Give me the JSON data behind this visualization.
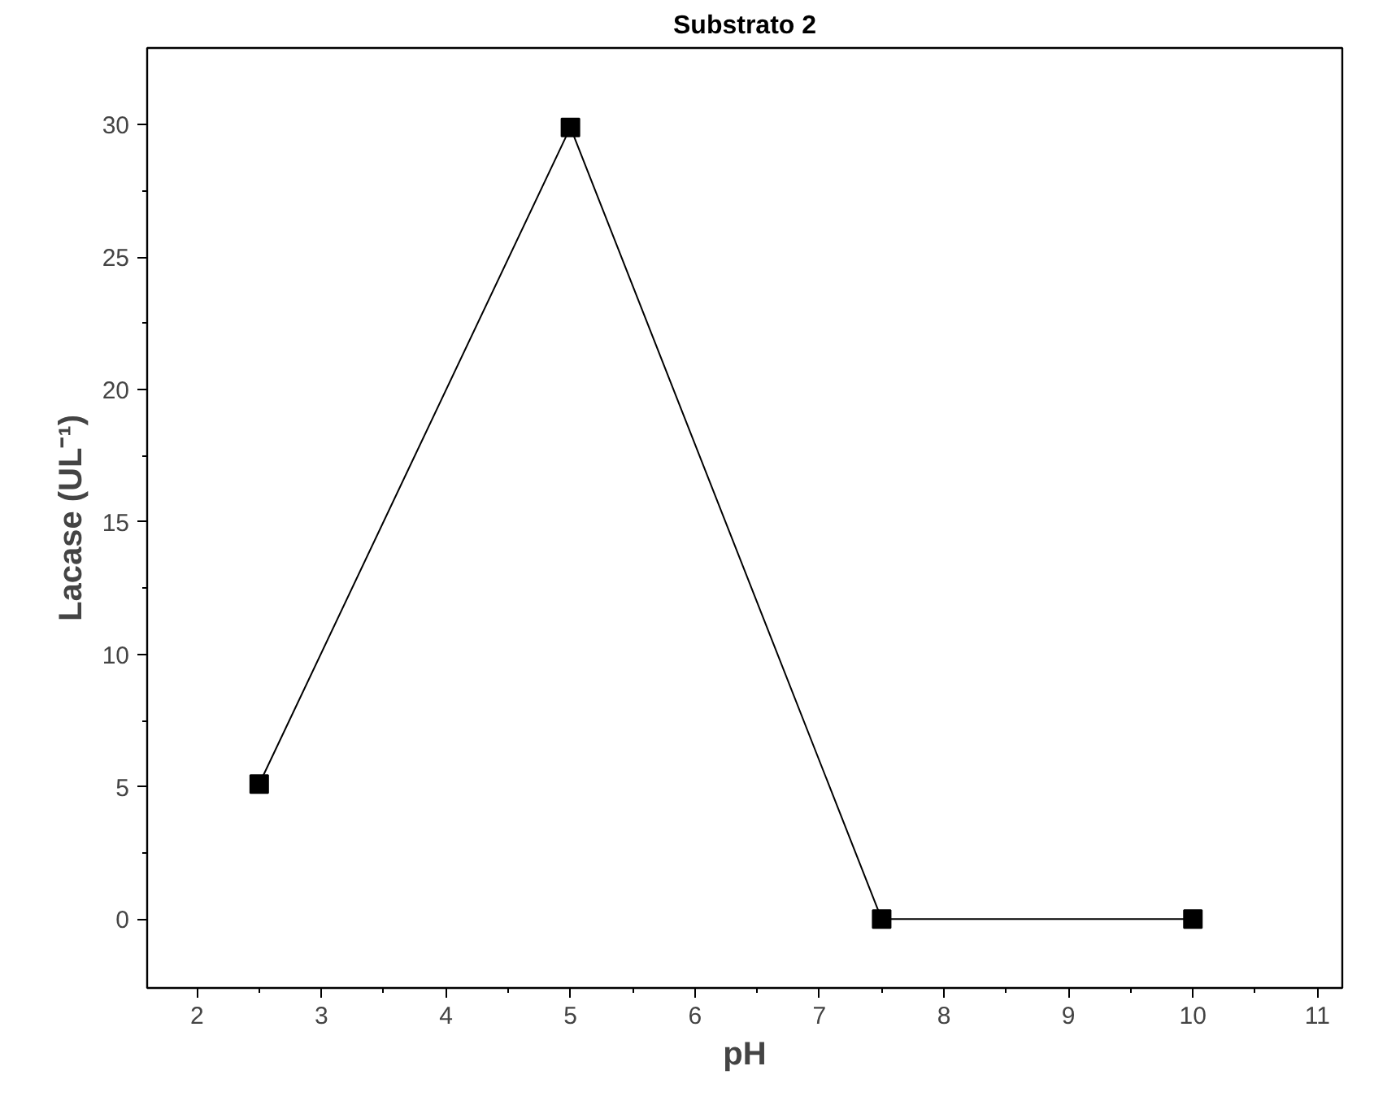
{
  "chart_data": {
    "type": "line",
    "title": "Substrato 2",
    "xlabel": "pH",
    "ylabel": "Lacase (UL⁻¹)",
    "x": [
      2.5,
      5,
      7.5,
      10
    ],
    "series": [
      {
        "color": "#000000",
        "values": [
          5.1,
          29.9,
          0,
          0
        ]
      }
    ],
    "xlim": [
      1.6,
      11.2
    ],
    "ylim": [
      -2.6,
      32.9
    ],
    "xticks": [
      2,
      3,
      4,
      5,
      6,
      7,
      8,
      9,
      10,
      11
    ],
    "yticks": [
      0,
      5,
      10,
      15,
      20,
      25,
      30
    ],
    "grid": false,
    "marker": "square",
    "line_style": "solid"
  }
}
